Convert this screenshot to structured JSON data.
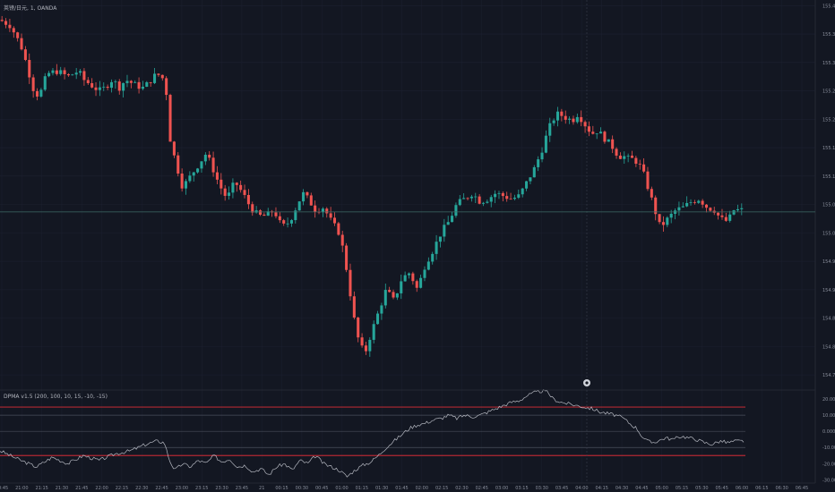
{
  "header": {
    "symbol": "英镑/日元, 1, OANDA"
  },
  "indicator": {
    "label": "DPMA v1.5 (200, 100, 10, 15, -10, -15)"
  },
  "colors": {
    "up": "#26a69a",
    "down": "#ef5350",
    "background": "#131722",
    "grid": "#1c2030",
    "osc_line": "#d1d4dc",
    "band": "#b22833",
    "level": "#4a4f5c"
  },
  "chart_data": [
    {
      "type": "candlestick",
      "title": "英镑/日元, 1, OANDA",
      "x_tick_labels": [
        "20:45",
        "21:00",
        "21:15",
        "21:30",
        "21:45",
        "22:00",
        "22:15",
        "22:30",
        "22:45",
        "23:00",
        "23:15",
        "23:30",
        "23:45",
        "21",
        "00:15",
        "00:30",
        "00:45",
        "01:00",
        "01:15",
        "01:30",
        "01:45",
        "02:00",
        "02:15",
        "02:30",
        "02:45",
        "03:00",
        "03:15",
        "03:30",
        "03:45",
        "04:00",
        "04:15",
        "04:30",
        "04:45",
        "05:00",
        "05:15",
        "05:30",
        "05:45",
        "06:00",
        "06:15",
        "06:30",
        "06:45"
      ],
      "y_tick_labels": [
        "155.400",
        "155.350",
        "155.300",
        "155.250",
        "155.200",
        "155.150",
        "155.100",
        "155.050",
        "155.000",
        "154.950",
        "154.900",
        "154.850",
        "154.800",
        "154.750"
      ],
      "ylim": [
        154.725,
        155.41
      ],
      "current_price": 155.037,
      "candle_count": 190,
      "path_points": [
        [
          0,
          155.375
        ],
        [
          4,
          155.365
        ],
        [
          8,
          155.33
        ],
        [
          10,
          155.3
        ],
        [
          13,
          155.25
        ],
        [
          15,
          155.24
        ],
        [
          18,
          155.28
        ],
        [
          22,
          155.285
        ],
        [
          26,
          155.275
        ],
        [
          30,
          155.285
        ],
        [
          32,
          155.27
        ],
        [
          35,
          155.26
        ],
        [
          38,
          155.25
        ],
        [
          40,
          155.255
        ],
        [
          43,
          155.27
        ],
        [
          46,
          155.255
        ],
        [
          48,
          155.27
        ],
        [
          52,
          155.26
        ],
        [
          55,
          155.255
        ],
        [
          58,
          155.27
        ],
        [
          60,
          155.28
        ],
        [
          62,
          155.275
        ],
        [
          63,
          155.265
        ],
        [
          64,
          155.24
        ],
        [
          65,
          155.17
        ],
        [
          67,
          155.13
        ],
        [
          70,
          155.08
        ],
        [
          73,
          155.1
        ],
        [
          76,
          155.12
        ],
        [
          79,
          155.14
        ],
        [
          81,
          155.12
        ],
        [
          84,
          155.085
        ],
        [
          87,
          155.06
        ],
        [
          90,
          155.09
        ],
        [
          93,
          155.07
        ],
        [
          96,
          155.045
        ],
        [
          99,
          155.03
        ],
        [
          102,
          155.03
        ],
        [
          105,
          155.04
        ],
        [
          108,
          155.01
        ],
        [
          111,
          155.02
        ],
        [
          114,
          155.05
        ],
        [
          116,
          155.07
        ],
        [
          118,
          155.06
        ],
        [
          121,
          155.04
        ],
        [
          124,
          155.045
        ],
        [
          127,
          155.02
        ],
        [
          130,
          155.0
        ],
        [
          132,
          154.96
        ],
        [
          134,
          154.9
        ],
        [
          136,
          154.84
        ],
        [
          138,
          154.8
        ],
        [
          140,
          154.79
        ],
        [
          142,
          154.82
        ],
        [
          145,
          154.86
        ],
        [
          148,
          154.9
        ],
        [
          151,
          154.88
        ],
        [
          154,
          154.92
        ],
        [
          157,
          154.93
        ],
        [
          160,
          154.9
        ],
        [
          163,
          154.945
        ],
        [
          166,
          154.97
        ],
        [
          169,
          155.0
        ],
        [
          172,
          155.02
        ],
        [
          175,
          155.05
        ],
        [
          178,
          155.06
        ],
        [
          181,
          155.07
        ],
        [
          184,
          155.055
        ],
        [
          187,
          155.06
        ],
        [
          190,
          155.07
        ],
        [
          193,
          155.065
        ],
        [
          196,
          155.06
        ],
        [
          199,
          155.065
        ],
        [
          202,
          155.09
        ],
        [
          205,
          155.115
        ],
        [
          208,
          155.15
        ],
        [
          210,
          155.18
        ],
        [
          212,
          155.2
        ],
        [
          214,
          155.21
        ],
        [
          216,
          155.205
        ],
        [
          218,
          155.2
        ],
        [
          220,
          155.2
        ],
        [
          221,
          155.21
        ],
        [
          223,
          155.2
        ],
        [
          225,
          155.185
        ],
        [
          227,
          155.175
        ],
        [
          229,
          155.18
        ],
        [
          231,
          155.17
        ],
        [
          233,
          155.16
        ],
        [
          235,
          155.15
        ],
        [
          237,
          155.135
        ],
        [
          239,
          155.135
        ],
        [
          241,
          155.13
        ],
        [
          243,
          155.13
        ],
        [
          245,
          155.12
        ],
        [
          247,
          155.1
        ],
        [
          249,
          155.07
        ],
        [
          251,
          155.04
        ],
        [
          253,
          155.01
        ],
        [
          255,
          155.02
        ],
        [
          257,
          155.03
        ],
        [
          259,
          155.04
        ],
        [
          262,
          155.045
        ],
        [
          265,
          155.055
        ],
        [
          268,
          155.06
        ],
        [
          271,
          155.045
        ],
        [
          274,
          155.04
        ],
        [
          276,
          155.025
        ],
        [
          279,
          155.02
        ],
        [
          281,
          155.04
        ],
        [
          283,
          155.04
        ],
        [
          285,
          155.04
        ]
      ]
    },
    {
      "type": "line",
      "title": "DPMA v1.5 (200, 100, 10, 15, -10, -15)",
      "y_tick_labels": [
        "20.0000",
        "10.0000",
        "0.0000",
        "-10.0000",
        "-20.0000",
        "-30.0000"
      ],
      "ylim": [
        -32,
        25
      ],
      "levels": [
        -15,
        -10,
        0,
        10,
        15
      ],
      "band_levels": [
        15,
        -15
      ],
      "path_points": [
        [
          0,
          -12
        ],
        [
          8,
          -18
        ],
        [
          14,
          -22
        ],
        [
          20,
          -16
        ],
        [
          26,
          -20
        ],
        [
          32,
          -15
        ],
        [
          38,
          -18
        ],
        [
          44,
          -14
        ],
        [
          50,
          -12
        ],
        [
          56,
          -8
        ],
        [
          60,
          -6
        ],
        [
          63,
          -7
        ],
        [
          65,
          -18
        ],
        [
          67,
          -24
        ],
        [
          70,
          -20
        ],
        [
          73,
          -22
        ],
        [
          76,
          -18
        ],
        [
          79,
          -20
        ],
        [
          82,
          -15
        ],
        [
          85,
          -19
        ],
        [
          88,
          -17
        ],
        [
          91,
          -22
        ],
        [
          94,
          -21
        ],
        [
          97,
          -25
        ],
        [
          100,
          -23
        ],
        [
          103,
          -27
        ],
        [
          106,
          -22
        ],
        [
          109,
          -20
        ],
        [
          112,
          -24
        ],
        [
          115,
          -18
        ],
        [
          118,
          -20
        ],
        [
          121,
          -15
        ],
        [
          124,
          -20
        ],
        [
          127,
          -22
        ],
        [
          130,
          -24
        ],
        [
          133,
          -28
        ],
        [
          136,
          -24
        ],
        [
          139,
          -21
        ],
        [
          142,
          -19
        ],
        [
          145,
          -15
        ],
        [
          148,
          -10
        ],
        [
          151,
          -6
        ],
        [
          154,
          -2
        ],
        [
          157,
          2
        ],
        [
          160,
          4
        ],
        [
          163,
          5
        ],
        [
          166,
          7
        ],
        [
          169,
          8
        ],
        [
          172,
          10
        ],
        [
          175,
          8
        ],
        [
          178,
          10
        ],
        [
          181,
          9
        ],
        [
          184,
          10
        ],
        [
          187,
          12
        ],
        [
          190,
          14
        ],
        [
          193,
          16
        ],
        [
          196,
          18
        ],
        [
          199,
          19
        ],
        [
          202,
          22
        ],
        [
          205,
          24
        ],
        [
          208,
          25
        ],
        [
          210,
          24
        ],
        [
          212,
          20
        ],
        [
          215,
          18
        ],
        [
          218,
          17
        ],
        [
          221,
          16
        ],
        [
          224,
          15
        ],
        [
          227,
          14
        ],
        [
          230,
          12
        ],
        [
          233,
          11
        ],
        [
          236,
          10
        ],
        [
          239,
          8
        ],
        [
          242,
          4
        ],
        [
          244,
          2
        ],
        [
          246,
          -3
        ],
        [
          248,
          -6
        ],
        [
          250,
          -7
        ],
        [
          252,
          -6
        ],
        [
          255,
          -4
        ],
        [
          258,
          -5
        ],
        [
          261,
          -3
        ],
        [
          264,
          -4
        ],
        [
          267,
          -5
        ],
        [
          270,
          -7
        ],
        [
          273,
          -8
        ],
        [
          276,
          -6
        ],
        [
          279,
          -7
        ],
        [
          282,
          -6
        ],
        [
          285,
          -6
        ]
      ]
    }
  ]
}
